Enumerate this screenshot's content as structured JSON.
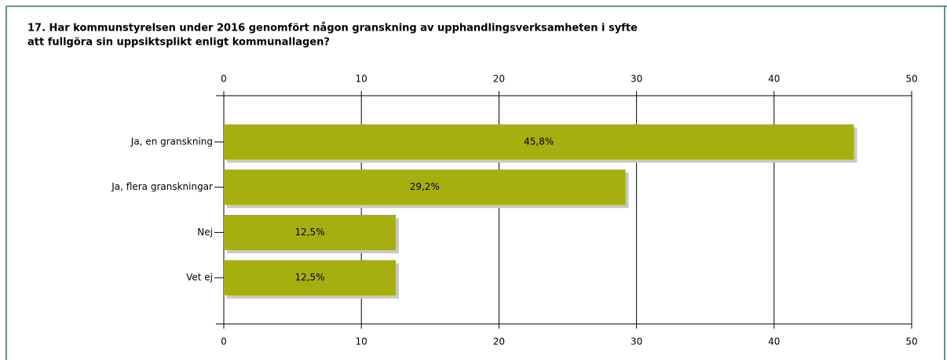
{
  "chart_data": {
    "type": "bar",
    "orientation": "horizontal",
    "title": [
      "17. Har kommunstyrelsen under 2016 genomfört någon granskning av upphandlingsverksamheten i syfte",
      "att fullgöra sin uppsiktsplikt enligt kommunallagen?"
    ],
    "categories": [
      "Ja, en granskning",
      "Ja, flera granskningar",
      "Nej",
      "Vet ej"
    ],
    "values": [
      45.8,
      29.2,
      12.5,
      12.5
    ],
    "value_labels": [
      "45,8%",
      "29,2%",
      "12,5%",
      "12,5%"
    ],
    "color": "#a6ae10",
    "xlim": [
      0,
      50
    ],
    "xticks": [
      0,
      10,
      20,
      30,
      40,
      50
    ],
    "grid": true
  }
}
